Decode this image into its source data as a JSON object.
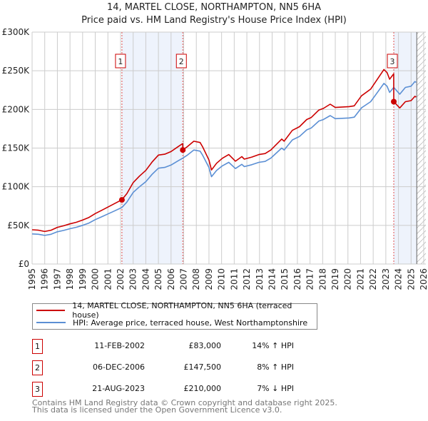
{
  "chart_data": {
    "type": "line",
    "title": "14, MARTEL CLOSE, NORTHAMPTON, NN5 6HA",
    "subtitle": "Price paid vs. HM Land Registry's House Price Index (HPI)",
    "xlabel": "",
    "ylabel": "",
    "xlim": [
      1995,
      2026
    ],
    "ylim": [
      0,
      300000
    ],
    "grid": true,
    "y_ticks": [
      {
        "value": 0,
        "label": "£0"
      },
      {
        "value": 50000,
        "label": "£50K"
      },
      {
        "value": 100000,
        "label": "£100K"
      },
      {
        "value": 150000,
        "label": "£150K"
      },
      {
        "value": 200000,
        "label": "£200K"
      },
      {
        "value": 250000,
        "label": "£250K"
      },
      {
        "value": 300000,
        "label": "£300K"
      }
    ],
    "x_ticks": [
      "1995",
      "1996",
      "1997",
      "1998",
      "1999",
      "2000",
      "2001",
      "2002",
      "2003",
      "2004",
      "2005",
      "2006",
      "2007",
      "2008",
      "2009",
      "2010",
      "2011",
      "2012",
      "2013",
      "2014",
      "2015",
      "2016",
      "2017",
      "2018",
      "2019",
      "2020",
      "2021",
      "2022",
      "2023",
      "2024",
      "2025",
      "2026"
    ],
    "series": [
      {
        "name": "14, MARTEL CLOSE, NORTHAMPTON, NN5 6HA (terraced house)",
        "color": "#cc0000",
        "x": [
          1995.0,
          1995.5,
          1996.0,
          1996.5,
          1997.0,
          1997.5,
          1998.0,
          1998.5,
          1999.0,
          1999.5,
          2000.0,
          2000.5,
          2001.0,
          2001.5,
          2002.1,
          2002.5,
          2003.0,
          2003.5,
          2004.0,
          2004.5,
          2005.0,
          2005.5,
          2006.0,
          2006.5,
          2006.92,
          2006.93,
          2007.3,
          2007.8,
          2008.3,
          2008.5,
          2009.0,
          2009.2,
          2009.6,
          2010.06,
          2010.57,
          2011.1,
          2011.6,
          2011.8,
          2012.4,
          2012.95,
          2013.45,
          2013.9,
          2014.76,
          2014.95,
          2015.6,
          2016.17,
          2016.74,
          2017.1,
          2017.7,
          2018.05,
          2018.6,
          2019.0,
          2020.1,
          2020.5,
          2021.07,
          2021.8,
          2022.2,
          2022.85,
          2023.1,
          2023.3,
          2023.62,
          2023.63,
          2024.1,
          2024.55,
          2025.0,
          2025.3,
          2025.4
        ],
        "y": [
          44300,
          43800,
          42100,
          43800,
          47400,
          49500,
          52000,
          54000,
          56900,
          60300,
          65300,
          69400,
          73700,
          77900,
          83000,
          91000,
          105300,
          113700,
          121100,
          131900,
          141000,
          142100,
          145500,
          151200,
          155800,
          147500,
          151900,
          158900,
          157200,
          151500,
          134600,
          121700,
          130300,
          136800,
          141600,
          133000,
          138900,
          135700,
          138400,
          141600,
          142900,
          147500,
          161600,
          158900,
          172900,
          177700,
          186900,
          189600,
          199200,
          201200,
          206800,
          202500,
          203600,
          204600,
          217600,
          226200,
          235900,
          251600,
          247700,
          239100,
          246000,
          210000,
          201900,
          210000,
          211400,
          216900,
          216000
        ]
      },
      {
        "name": "HPI: Average price, terraced house, West Northamptonshire",
        "color": "#5b8fd4",
        "x": [
          1995.0,
          1995.5,
          1996.0,
          1996.5,
          1997.0,
          1997.5,
          1998.0,
          1998.5,
          1999.0,
          1999.5,
          2000.0,
          2000.5,
          2001.0,
          2001.5,
          2002.1,
          2002.5,
          2003.0,
          2003.5,
          2004.0,
          2004.5,
          2005.0,
          2005.5,
          2006.0,
          2006.5,
          2006.93,
          2007.3,
          2007.8,
          2008.3,
          2008.5,
          2009.0,
          2009.2,
          2009.6,
          2010.06,
          2010.57,
          2011.1,
          2011.6,
          2011.8,
          2012.4,
          2012.95,
          2013.45,
          2013.9,
          2014.76,
          2014.95,
          2015.6,
          2016.17,
          2016.74,
          2017.1,
          2017.7,
          2018.05,
          2018.6,
          2019.0,
          2020.1,
          2020.5,
          2021.07,
          2021.8,
          2022.2,
          2022.85,
          2023.1,
          2023.3,
          2023.63,
          2024.1,
          2024.55,
          2025.0,
          2025.3,
          2025.4
        ],
        "y": [
          39000,
          38500,
          37000,
          38500,
          41700,
          43500,
          45700,
          47500,
          50000,
          53000,
          57400,
          61000,
          64800,
          68500,
          73000,
          80000,
          92600,
          100000,
          106500,
          116000,
          124000,
          125000,
          128000,
          133000,
          137000,
          141000,
          147500,
          146000,
          140700,
          125000,
          113000,
          121000,
          127000,
          131500,
          123500,
          129000,
          126000,
          128500,
          131500,
          132700,
          137000,
          150000,
          147500,
          160500,
          165000,
          173500,
          176000,
          185000,
          186800,
          192000,
          188000,
          189000,
          190000,
          202000,
          210000,
          219000,
          233600,
          230000,
          222000,
          228500,
          219700,
          228500,
          230000,
          236000,
          235000
        ]
      }
    ],
    "sales": [
      {
        "label": "1",
        "date": "11-FEB-2002",
        "year": 2002.11,
        "price": 83000,
        "price_label": "£83,000",
        "hpi_diff": "14% ↑ HPI"
      },
      {
        "label": "2",
        "date": "06-DEC-2006",
        "year": 2006.93,
        "price": 147500,
        "price_label": "£147,500",
        "hpi_diff": "8% ↑ HPI"
      },
      {
        "label": "3",
        "date": "21-AUG-2023",
        "year": 2023.63,
        "price": 210000,
        "price_label": "£210,000",
        "hpi_diff": "7% ↓ HPI"
      }
    ],
    "shaded_ranges": [
      [
        2002.11,
        2006.93
      ],
      [
        2023.63,
        2025.45
      ]
    ],
    "forecast_from": 2025.45,
    "legend_placement": "below"
  },
  "footer": {
    "line1": "Contains HM Land Registry data © Crown copyright and database right 2025.",
    "line2": "This data is licensed under the Open Government Licence v3.0."
  }
}
